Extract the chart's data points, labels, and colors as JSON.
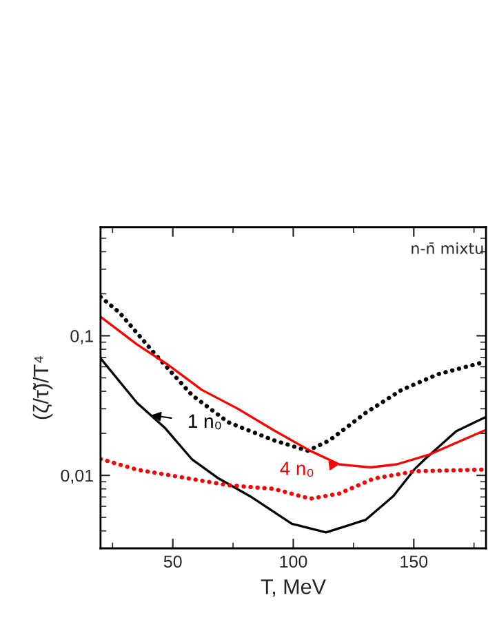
{
  "chart_data": {
    "type": "line",
    "xlabel": "T, MeV",
    "ylabel": "(ζ/τ̃)/T⁴",
    "log": "y",
    "xlim": [
      20,
      180
    ],
    "xticks": [
      50,
      100,
      150
    ],
    "ylim": [
      0.003,
      0.6
    ],
    "yticks": [
      {
        "value": 0.01,
        "label": "0,01"
      },
      {
        "value": 0.1,
        "label": "0,1"
      }
    ],
    "marker": "none",
    "series": [
      {
        "color": "#000000",
        "line_style": "solid",
        "x": [
          20,
          35.2,
          46.6,
          58,
          69,
          82,
          99.4,
          113.6,
          130,
          141.5,
          150.6,
          154.5,
          167.6,
          179.5
        ],
        "values": [
          0.069,
          0.033,
          0.022,
          0.013,
          0.0095,
          0.0071,
          0.0045,
          0.0039,
          0.0048,
          0.0071,
          0.0112,
          0.013,
          0.0207,
          0.026
        ]
      },
      {
        "color": "#000000",
        "line_style": "dotted",
        "x": [
          20,
          27.8,
          42.6,
          58,
          73,
          92,
          106,
          115,
          130,
          145,
          160,
          179.5
        ],
        "values": [
          0.19,
          0.147,
          0.074,
          0.0375,
          0.024,
          0.0178,
          0.015,
          0.0178,
          0.028,
          0.041,
          0.053,
          0.065
        ]
      },
      {
        "color": "#ff0000",
        "line_style": "solid",
        "x": [
          20,
          35,
          48,
          62,
          77,
          92,
          107,
          119,
          132,
          143,
          156,
          179.5
        ],
        "values": [
          0.137,
          0.087,
          0.062,
          0.041,
          0.03,
          0.021,
          0.015,
          0.012,
          0.0114,
          0.012,
          0.014,
          0.021
        ]
      },
      {
        "color": "#ff0000",
        "line_style": "dotted",
        "x": [
          20,
          35,
          73,
          92,
          107,
          119,
          133.5,
          150.6,
          179
        ],
        "values": [
          0.0131,
          0.011,
          0.0085,
          0.008,
          0.0068,
          0.0074,
          0.0095,
          0.0107,
          0.011
        ]
      }
    ],
    "annotations": [
      {
        "text": "1 n₀",
        "x": 41,
        "y": 0.027
      },
      {
        "text": "4 n₀",
        "x": 119,
        "y": 0.012
      },
      "n-n̄ mixtu"
    ]
  }
}
